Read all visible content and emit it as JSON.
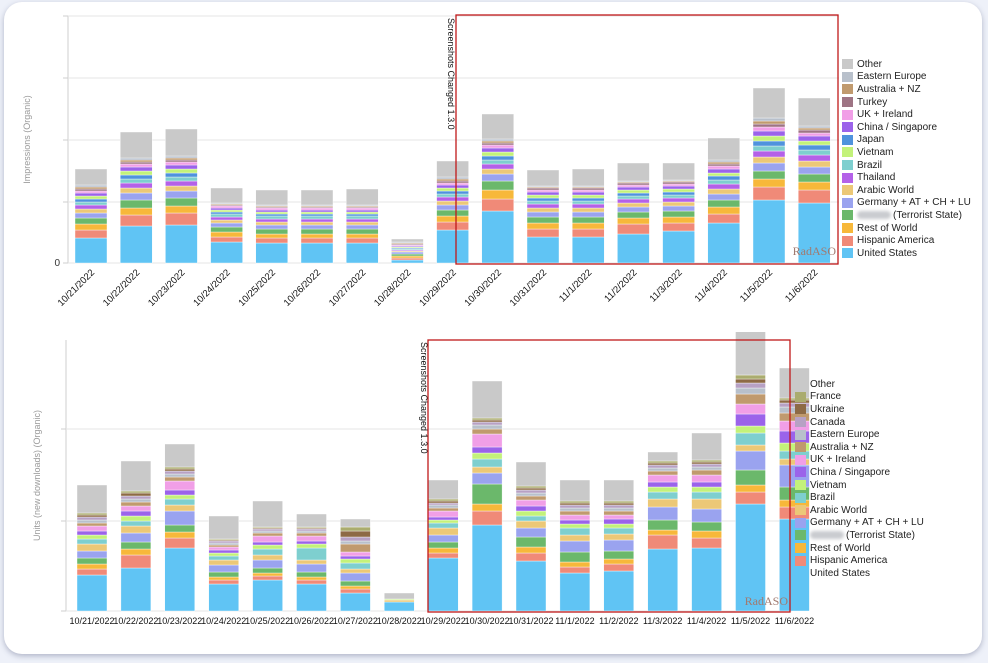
{
  "series_colors": {
    "United States": "#60c4f4",
    "Hispanic America": "#f08a78",
    "Rest of World": "#f7b83a",
    "Terrorist State": "#6bb86b",
    "Germany + AT + CH + LU": "#9aa3ef",
    "Arabic World": "#ecc877",
    "Thailand": "#b461e8",
    "Brazil": "#7ecfcf",
    "Japan": "#4f93dd",
    "Vietnam": "#c3f27a",
    "China / Singapore": "#9b63ea",
    "UK + Ireland": "#f19fe7",
    "Turkey": "#9e7484",
    "Australia + NZ": "#c09a6e",
    "Eastern Europe": "#b8c0cb",
    "Canada": "#b7a1c4",
    "Ukraine": "#8d6a45",
    "France": "#aaac6e",
    "Other": "#c9c9c9"
  },
  "chart_data": [
    {
      "type": "bar",
      "stacked": true,
      "ylabel": "Impressions (Organic)",
      "y_tick_labels": [
        "0"
      ],
      "annotation": "Screenshots Changed 1.3.0",
      "watermark": "RadASO",
      "categories": [
        "10/21/2022",
        "10/22/2022",
        "10/23/2022",
        "10/24/2022",
        "10/25/2022",
        "10/26/2022",
        "10/27/2022",
        "10/28/2022",
        "10/29/2022",
        "10/30/2022",
        "10/31/2022",
        "11/1/2022",
        "11/2/2022",
        "11/3/2022",
        "11/4/2022",
        "11/5/2022",
        "11/6/2022"
      ],
      "legend": [
        "Other",
        "Eastern Europe",
        "Australia + NZ",
        "Turkey",
        "UK + Ireland",
        "China / Singapore",
        "Japan",
        "Vietnam",
        "Brazil",
        "Thailand",
        "Arabic World",
        "Germany + AT + CH + LU",
        "(Terrorist State)",
        "Rest of World",
        "Hispanic America",
        "United States"
      ],
      "series": [
        {
          "name": "United States",
          "values": [
            25,
            37,
            38,
            21,
            20,
            20,
            20,
            3,
            33,
            52,
            26,
            26,
            29,
            32,
            40,
            63,
            60
          ]
        },
        {
          "name": "Hispanic America",
          "values": [
            8,
            11,
            12,
            5,
            5,
            5,
            5,
            2,
            8,
            12,
            8,
            8,
            10,
            8,
            9,
            13,
            13
          ]
        },
        {
          "name": "Rest of World",
          "values": [
            6,
            7,
            7,
            5,
            4,
            4,
            4,
            2,
            6,
            9,
            6,
            6,
            6,
            6,
            7,
            8,
            8
          ]
        },
        {
          "name": "Terrorist State",
          "values": [
            6,
            8,
            8,
            5,
            5,
            5,
            5,
            2,
            6,
            9,
            6,
            6,
            6,
            6,
            7,
            8,
            8
          ]
        },
        {
          "name": "Germany + AT + CH + LU",
          "values": [
            5,
            7,
            7,
            4,
            4,
            4,
            4,
            2,
            5,
            7,
            5,
            5,
            5,
            5,
            6,
            8,
            7
          ]
        },
        {
          "name": "Arabic World",
          "values": [
            4,
            5,
            5,
            3,
            3,
            3,
            3,
            1,
            4,
            5,
            4,
            4,
            4,
            4,
            5,
            6,
            6
          ]
        },
        {
          "name": "Thailand",
          "values": [
            4,
            5,
            5,
            3,
            3,
            3,
            3,
            1,
            4,
            5,
            4,
            4,
            4,
            4,
            5,
            6,
            6
          ]
        },
        {
          "name": "Brazil",
          "values": [
            3,
            4,
            4,
            3,
            3,
            3,
            3,
            1,
            3,
            4,
            3,
            3,
            3,
            3,
            4,
            5,
            5
          ]
        },
        {
          "name": "Japan",
          "values": [
            3,
            4,
            4,
            2,
            2,
            2,
            2,
            1,
            3,
            4,
            3,
            3,
            3,
            3,
            4,
            5,
            5
          ]
        },
        {
          "name": "Vietnam",
          "values": [
            3,
            4,
            4,
            2,
            2,
            2,
            2,
            1,
            3,
            4,
            3,
            3,
            3,
            3,
            3,
            5,
            4
          ]
        },
        {
          "name": "China / Singapore",
          "values": [
            3,
            4,
            4,
            2,
            2,
            2,
            2,
            1,
            3,
            4,
            3,
            3,
            3,
            3,
            4,
            5,
            5
          ]
        },
        {
          "name": "UK + Ireland",
          "values": [
            2,
            3,
            3,
            2,
            2,
            2,
            2,
            1,
            2,
            3,
            2,
            2,
            2,
            2,
            3,
            4,
            3
          ]
        },
        {
          "name": "Turkey",
          "values": [
            2,
            2,
            2,
            1,
            1,
            1,
            1,
            1,
            2,
            2,
            2,
            2,
            2,
            2,
            2,
            3,
            3
          ]
        },
        {
          "name": "Australia + NZ",
          "values": [
            2,
            2,
            2,
            1,
            1,
            1,
            1,
            1,
            2,
            2,
            1,
            1,
            1,
            1,
            2,
            3,
            2
          ]
        },
        {
          "name": "Eastern Europe",
          "values": [
            2,
            2,
            2,
            1,
            1,
            1,
            1,
            1,
            2,
            2,
            1,
            1,
            1,
            1,
            2,
            3,
            2
          ]
        },
        {
          "name": "Other",
          "values": [
            16,
            26,
            27,
            15,
            15,
            15,
            16,
            3,
            16,
            25,
            16,
            17,
            18,
            17,
            22,
            30,
            28
          ]
        }
      ]
    },
    {
      "type": "bar",
      "stacked": true,
      "ylabel": "Units (new downloads) (Organic)",
      "annotation": "Screenshots Changed 1.3.0",
      "watermark": "RadASO",
      "categories": [
        "10/21/2022",
        "10/22/2022",
        "10/23/2022",
        "10/24/2022",
        "10/25/2022",
        "10/26/2022",
        "10/27/2022",
        "10/28/2022",
        "10/29/2022",
        "10/30/2022",
        "10/31/2022",
        "11/1/2022",
        "11/2/2022",
        "11/3/2022",
        "11/4/2022",
        "11/5/2022",
        "11/6/2022"
      ],
      "legend": [
        "Other",
        "France",
        "Ukraine",
        "Canada",
        "Eastern Europe",
        "Australia + NZ",
        "UK + Ireland",
        "China / Singapore",
        "Vietnam",
        "Brazil",
        "Arabic World",
        "Germany + AT + CH + LU",
        "(Terrorist State)",
        "Rest of World",
        "Hispanic America",
        "United States"
      ],
      "series": [
        {
          "name": "United States",
          "values": [
            36,
            43,
            63,
            27,
            31,
            27,
            18,
            9,
            53,
            86,
            50,
            38,
            40,
            62,
            63,
            107,
            92
          ]
        },
        {
          "name": "Hispanic America",
          "values": [
            6,
            13,
            10,
            4,
            4,
            4,
            4,
            0,
            5,
            14,
            8,
            6,
            7,
            14,
            10,
            12,
            12
          ]
        },
        {
          "name": "Rest of World",
          "values": [
            5,
            6,
            6,
            3,
            3,
            3,
            3,
            0,
            5,
            7,
            6,
            5,
            5,
            5,
            7,
            7,
            7
          ]
        },
        {
          "name": "Terrorist State",
          "values": [
            6,
            7,
            7,
            5,
            5,
            5,
            5,
            0,
            6,
            20,
            10,
            10,
            8,
            10,
            9,
            15,
            13
          ]
        },
        {
          "name": "Germany + AT + CH + LU",
          "values": [
            7,
            9,
            14,
            7,
            8,
            8,
            8,
            0,
            7,
            11,
            9,
            11,
            11,
            13,
            13,
            19,
            22
          ]
        },
        {
          "name": "Arabic World",
          "values": [
            7,
            7,
            6,
            5,
            5,
            4,
            4,
            2,
            7,
            6,
            7,
            6,
            6,
            8,
            10,
            6,
            6
          ]
        },
        {
          "name": "Brazil",
          "values": [
            5,
            5,
            6,
            4,
            6,
            12,
            6,
            0,
            5,
            8,
            5,
            7,
            6,
            7,
            7,
            12,
            8
          ]
        },
        {
          "name": "Vietnam",
          "values": [
            4,
            5,
            4,
            3,
            4,
            4,
            4,
            1,
            3,
            6,
            5,
            4,
            4,
            5,
            5,
            7,
            8
          ]
        },
        {
          "name": "China / Singapore",
          "values": [
            4,
            5,
            5,
            3,
            3,
            3,
            3,
            0,
            3,
            6,
            5,
            4,
            5,
            5,
            5,
            12,
            12
          ]
        },
        {
          "name": "UK + Ireland",
          "values": [
            5,
            5,
            9,
            3,
            6,
            5,
            4,
            0,
            6,
            13,
            6,
            5,
            4,
            7,
            7,
            10,
            10
          ]
        },
        {
          "name": "Australia + NZ",
          "values": [
            3,
            4,
            4,
            2,
            3,
            3,
            8,
            0,
            3,
            5,
            4,
            4,
            4,
            4,
            5,
            10,
            8
          ]
        },
        {
          "name": "Eastern Europe",
          "values": [
            3,
            3,
            3,
            2,
            2,
            2,
            3,
            0,
            3,
            4,
            3,
            3,
            3,
            3,
            3,
            6,
            6
          ]
        },
        {
          "name": "Canada",
          "values": [
            3,
            3,
            3,
            2,
            2,
            2,
            4,
            0,
            2,
            3,
            3,
            3,
            3,
            3,
            3,
            5,
            4
          ]
        },
        {
          "name": "Ukraine",
          "values": [
            2,
            3,
            2,
            1,
            1,
            1,
            6,
            0,
            2,
            2,
            2,
            2,
            2,
            2,
            2,
            4,
            3
          ]
        },
        {
          "name": "France",
          "values": [
            2,
            2,
            2,
            1,
            1,
            1,
            4,
            0,
            2,
            2,
            2,
            2,
            2,
            2,
            2,
            4,
            2
          ]
        },
        {
          "name": "Other",
          "values": [
            28,
            30,
            23,
            23,
            26,
            13,
            8,
            6,
            19,
            37,
            24,
            21,
            21,
            9,
            27,
            46,
            30
          ]
        }
      ]
    }
  ]
}
